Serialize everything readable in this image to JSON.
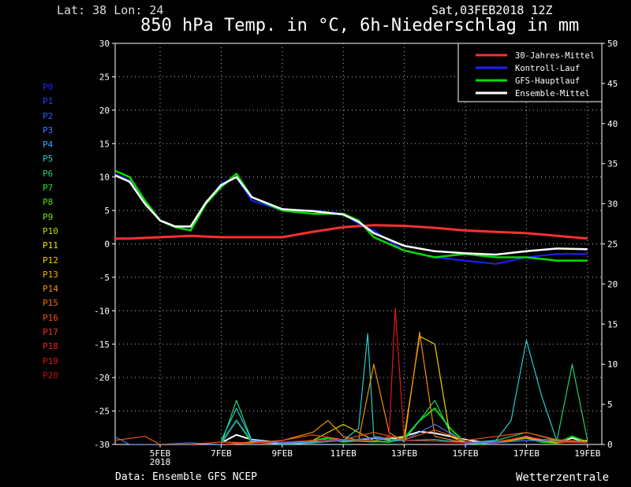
{
  "header": {
    "location": "Lat: 38 Lon: 24",
    "run": "Sat,03FEB2018 12Z",
    "title": "850 hPa Temp. in °C, 6h-Niederschlag in mm"
  },
  "footer": {
    "source": "Data: Ensemble GFS NCEP",
    "brand": "Wetterzentrale"
  },
  "members": [
    {
      "label": "P0",
      "color": "#2020ff"
    },
    {
      "label": "P1",
      "color": "#2a3cff"
    },
    {
      "label": "P2",
      "color": "#2f5cff"
    },
    {
      "label": "P3",
      "color": "#3a7cff"
    },
    {
      "label": "P4",
      "color": "#30a8ff"
    },
    {
      "label": "P5",
      "color": "#22d0d0"
    },
    {
      "label": "P6",
      "color": "#22d070"
    },
    {
      "label": "P7",
      "color": "#30e030"
    },
    {
      "label": "P8",
      "color": "#50e000"
    },
    {
      "label": "P9",
      "color": "#80e000"
    },
    {
      "label": "P10",
      "color": "#b0e000"
    },
    {
      "label": "P11",
      "color": "#e8e800"
    },
    {
      "label": "P12",
      "color": "#f0d000"
    },
    {
      "label": "P13",
      "color": "#f0b000"
    },
    {
      "label": "P14",
      "color": "#f09000"
    },
    {
      "label": "P15",
      "color": "#f07000"
    },
    {
      "label": "P16",
      "color": "#f05010"
    },
    {
      "label": "P17",
      "color": "#f03020"
    },
    {
      "label": "P18",
      "color": "#f02020"
    },
    {
      "label": "P19",
      "color": "#e01818"
    },
    {
      "label": "P20",
      "color": "#c01010"
    }
  ],
  "chart_data": {
    "type": "line",
    "title": "850 hPa Temp. in °C, 6h-Niederschlag in mm",
    "x_ticks": [
      {
        "day": 2,
        "label": "5FEB",
        "sub": "2018"
      },
      {
        "day": 4,
        "label": "7FEB"
      },
      {
        "day": 6,
        "label": "9FEB"
      },
      {
        "day": 8,
        "label": "11FEB"
      },
      {
        "day": 10,
        "label": "13FEB"
      },
      {
        "day": 12,
        "label": "15FEB"
      },
      {
        "day": 14,
        "label": "17FEB"
      },
      {
        "day": 16,
        "label": "19FEB"
      }
    ],
    "x_range_days": [
      0,
      16
    ],
    "ylim_left": [
      -30,
      30
    ],
    "ylim_right": [
      0,
      50
    ],
    "y_ticks_left": [
      30,
      25,
      20,
      15,
      10,
      5,
      0,
      -5,
      -10,
      -15,
      -20,
      -25,
      -30
    ],
    "y_ticks_right": [
      50,
      45,
      40,
      35,
      30,
      25,
      20,
      15,
      10,
      5,
      0
    ],
    "legend_position": "top-right",
    "grid": true,
    "legend": [
      {
        "name": "30-Jahres-Mittel",
        "color": "#ff3030"
      },
      {
        "name": "Kontroll-Lauf",
        "color": "#2020ff"
      },
      {
        "name": "GFS-Hauptlauf",
        "color": "#00dd00"
      },
      {
        "name": "Ensemble-Mittel",
        "color": "#ffffff"
      }
    ],
    "temperature_series": [
      {
        "name": "30-Jahres-Mittel",
        "color": "#ff3030",
        "width": 3,
        "x": [
          -0.5,
          1,
          2,
          3,
          4,
          5,
          6,
          7,
          8,
          9,
          10,
          11,
          12,
          13,
          14,
          15,
          16
        ],
        "y": [
          0.8,
          0.8,
          1.0,
          1.2,
          1.0,
          1.0,
          1.0,
          1.8,
          2.5,
          2.8,
          2.7,
          2.4,
          2.0,
          1.8,
          1.6,
          1.2,
          0.8
        ]
      },
      {
        "name": "Kontroll-Lauf",
        "color": "#2020ff",
        "width": 2,
        "x": [
          -0.5,
          0,
          0.5,
          1,
          1.5,
          2,
          2.5,
          3,
          3.5,
          4,
          4.5,
          5,
          6,
          7,
          8,
          8.5,
          9,
          10,
          11,
          12,
          13,
          14,
          15,
          16
        ],
        "y": [
          8.5,
          9.5,
          10.5,
          9.5,
          6,
          3.5,
          2.5,
          2.5,
          6,
          9,
          10,
          6.5,
          5,
          5,
          4.5,
          3,
          2,
          -1,
          -2,
          -2.5,
          -3,
          -2,
          -1.5,
          -1.5
        ]
      },
      {
        "name": "GFS-Hauptlauf",
        "color": "#00dd00",
        "width": 2.5,
        "x": [
          -0.5,
          0,
          0.5,
          1,
          1.5,
          2,
          2.5,
          3,
          3.5,
          4,
          4.5,
          5,
          6,
          7,
          8,
          8.5,
          9,
          10,
          11,
          12,
          13,
          14,
          15,
          16
        ],
        "y": [
          8.5,
          10,
          11,
          10,
          6.5,
          3.5,
          2.5,
          2,
          6,
          8.5,
          10.5,
          7,
          5,
          4.5,
          4.5,
          3.5,
          1,
          -1,
          -2,
          -1.5,
          -2,
          -2,
          -2.5,
          -2.5
        ]
      },
      {
        "name": "Ensemble-Mittel",
        "color": "#ffffff",
        "width": 2.5,
        "x": [
          -0.5,
          0,
          0.5,
          1,
          1.5,
          2,
          2.5,
          3,
          3.5,
          4,
          4.5,
          5,
          6,
          7,
          8,
          8.5,
          9,
          10,
          11,
          12,
          13,
          14,
          15,
          16
        ],
        "y": [
          8.5,
          9.8,
          10.3,
          9.3,
          6,
          3.5,
          2.6,
          2.6,
          6.2,
          8.8,
          10,
          7,
          5.2,
          4.9,
          4.4,
          3.3,
          1.6,
          -0.3,
          -1.1,
          -1.4,
          -1.6,
          -1.1,
          -0.7,
          -0.8
        ]
      }
    ],
    "precip_series": [
      {
        "name": "Ensemble-Mittel",
        "color": "#ffffff",
        "width": 2,
        "x": [
          4,
          4.5,
          5,
          6,
          7,
          7.5,
          8,
          8.5,
          9,
          9.5,
          10,
          10.5,
          11,
          11.5,
          12,
          12.5,
          13,
          13.5,
          14,
          14.5,
          15,
          15.5,
          16
        ],
        "y": [
          0.2,
          1.2,
          0.6,
          0.2,
          0.4,
          0.8,
          0.4,
          0.6,
          0.8,
          0.6,
          1.0,
          1.6,
          1.4,
          1.0,
          0.6,
          0.3,
          0.3,
          0.6,
          1.0,
          0.5,
          0.3,
          0.8,
          0.3
        ]
      },
      {
        "name": "GFS-Hauptlauf",
        "color": "#00dd00",
        "width": 2,
        "x": [
          4,
          4.5,
          5,
          6,
          7,
          7.5,
          8,
          8.5,
          9,
          9.5,
          10,
          10.5,
          11,
          11.5,
          12,
          12.5,
          13,
          13.5,
          14,
          14.5,
          15,
          15.5,
          16
        ],
        "y": [
          0.2,
          3.0,
          0.3,
          0.1,
          0.5,
          0.8,
          0.3,
          0.5,
          0.4,
          0.3,
          0.8,
          3.0,
          4.5,
          2.0,
          0.2,
          0.1,
          0.3,
          0.5,
          0.8,
          0.3,
          0.2,
          1.0,
          0.3
        ]
      },
      {
        "name": "P6",
        "color": "#22d070",
        "width": 1.2,
        "x": [
          4,
          4.5,
          5,
          6,
          7,
          8,
          9,
          10,
          10.5,
          11,
          11.5,
          12,
          13,
          14,
          15,
          15.5,
          16
        ],
        "y": [
          0,
          5.5,
          0.5,
          0,
          0.2,
          0.5,
          0.3,
          0.5,
          3.0,
          5.5,
          1.5,
          0.2,
          0.5,
          1.5,
          0.5,
          10.0,
          0.5
        ]
      },
      {
        "name": "P5",
        "color": "#22d0d0",
        "width": 1.2,
        "x": [
          4,
          4.5,
          5,
          6,
          7,
          8,
          8.5,
          8.8,
          9,
          10,
          11,
          12,
          13,
          13.5,
          14,
          14.5,
          15,
          16
        ],
        "y": [
          0.5,
          4.5,
          0.5,
          0,
          0.3,
          0.5,
          2.0,
          13.8,
          1.0,
          0.5,
          0.6,
          0.2,
          0.5,
          3.0,
          13.0,
          6.0,
          0.4,
          0.5
        ]
      },
      {
        "name": "P12",
        "color": "#f0d000",
        "width": 1.2,
        "x": [
          4,
          5,
          6,
          7,
          8,
          9,
          9.5,
          10,
          10.5,
          11,
          11.5,
          12,
          13,
          14,
          15,
          16
        ],
        "y": [
          0,
          0.3,
          0.2,
          0.5,
          2.5,
          0.5,
          0.8,
          1.0,
          13.5,
          12.5,
          1.0,
          0.2,
          0.3,
          0.8,
          0.2,
          0.5
        ]
      },
      {
        "name": "P14",
        "color": "#f09000",
        "width": 1.2,
        "x": [
          4,
          5,
          6,
          7,
          7.5,
          8,
          8.5,
          9,
          9.5,
          10,
          10.5,
          11,
          12,
          13,
          14,
          15,
          16
        ],
        "y": [
          0,
          0.2,
          0.5,
          1.5,
          3.0,
          1.0,
          0.5,
          10.0,
          1.5,
          0.3,
          14.0,
          1.0,
          0.2,
          0.2,
          0.8,
          0.5,
          0.3
        ]
      },
      {
        "name": "P19",
        "color": "#e01818",
        "width": 1.2,
        "x": [
          4,
          5,
          6,
          7,
          8,
          9,
          9.5,
          9.7,
          10,
          11,
          12,
          13,
          14,
          15,
          16
        ],
        "y": [
          0,
          0.2,
          0.3,
          0.5,
          0.6,
          0.5,
          1.0,
          17.0,
          0.5,
          0.4,
          0.2,
          0.3,
          1.0,
          0.3,
          0.2
        ]
      },
      {
        "name": "P3",
        "color": "#3a7cff",
        "width": 1.2,
        "x": [
          -0.5,
          0.5,
          1,
          2,
          3,
          4,
          4.5,
          5,
          6,
          7,
          8,
          9,
          10,
          11,
          12,
          13,
          14,
          15,
          16
        ],
        "y": [
          0,
          1.0,
          0,
          0,
          0.2,
          0,
          3.0,
          0.5,
          0.2,
          0.3,
          0.5,
          0.8,
          0.5,
          2.5,
          0.3,
          0.2,
          0.5,
          0.4,
          0.3
        ]
      },
      {
        "name": "P16",
        "color": "#f05010",
        "width": 1.2,
        "x": [
          -0.5,
          1.5,
          2,
          3,
          4,
          5,
          6,
          7,
          8,
          9,
          10,
          11,
          12,
          13,
          14,
          15,
          16
        ],
        "y": [
          0,
          1.0,
          0,
          0,
          0.3,
          0.2,
          0.5,
          1.2,
          0.6,
          1.5,
          0.6,
          1.8,
          0.5,
          1.0,
          1.5,
          0.6,
          0.3
        ]
      }
    ]
  }
}
